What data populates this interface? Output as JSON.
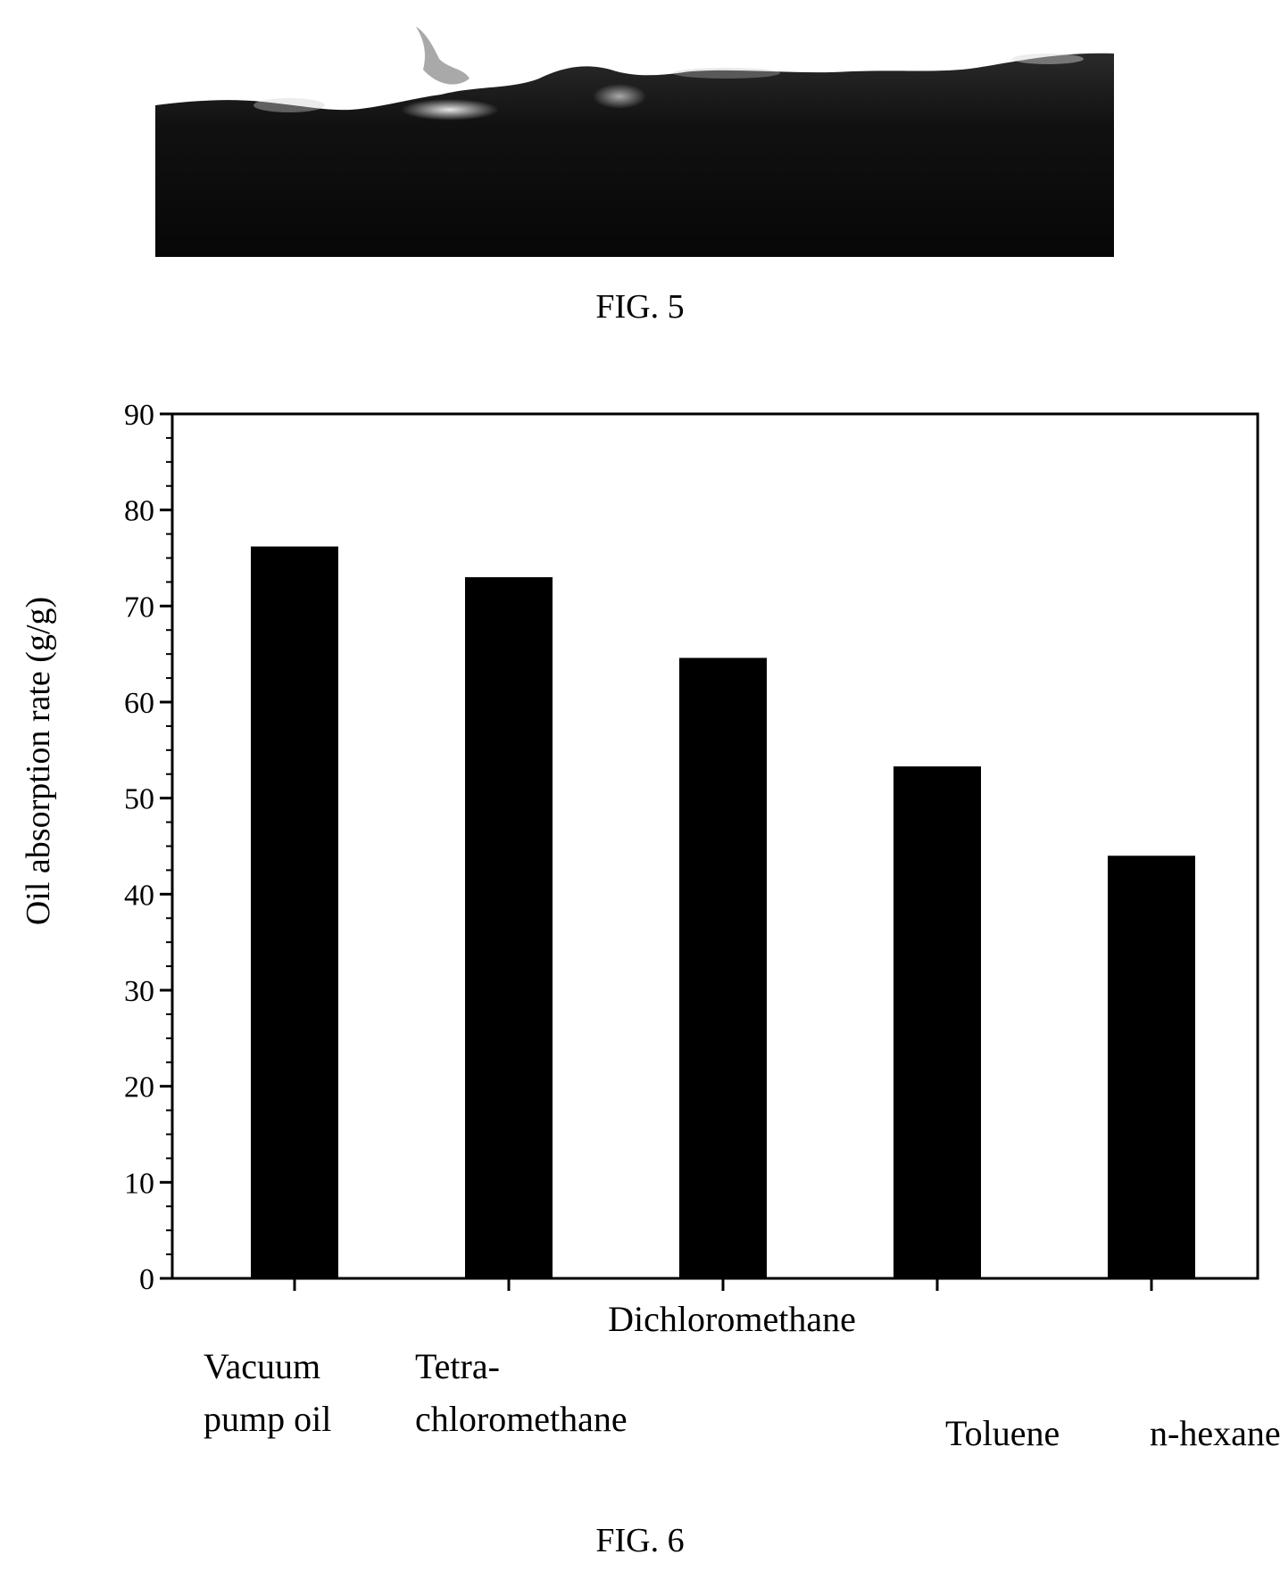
{
  "figures": {
    "fig5": {
      "caption": "FIG. 5"
    },
    "fig6": {
      "caption": "FIG. 6"
    }
  },
  "chart_data": {
    "type": "bar",
    "categories": [
      "Vacuum pump oil",
      "Tetra-chloromethane",
      "Dichloromethane",
      "Toluene",
      "n-hexane"
    ],
    "category_labels": [
      [
        "Vacuum",
        "pump oil"
      ],
      [
        "Tetra-",
        "chloromethane"
      ],
      [
        "Dichloromethane"
      ],
      [
        "Toluene"
      ],
      [
        "n-hexane"
      ]
    ],
    "values": [
      76.2,
      73.0,
      64.6,
      53.3,
      44.0
    ],
    "ylabel": "Oil absorption rate (g/g)",
    "xlabel": "",
    "ylim": [
      0,
      90
    ],
    "yticks": [
      0,
      10,
      20,
      30,
      40,
      50,
      60,
      70,
      80,
      90
    ],
    "bar_color": "#000000",
    "grid": false
  }
}
